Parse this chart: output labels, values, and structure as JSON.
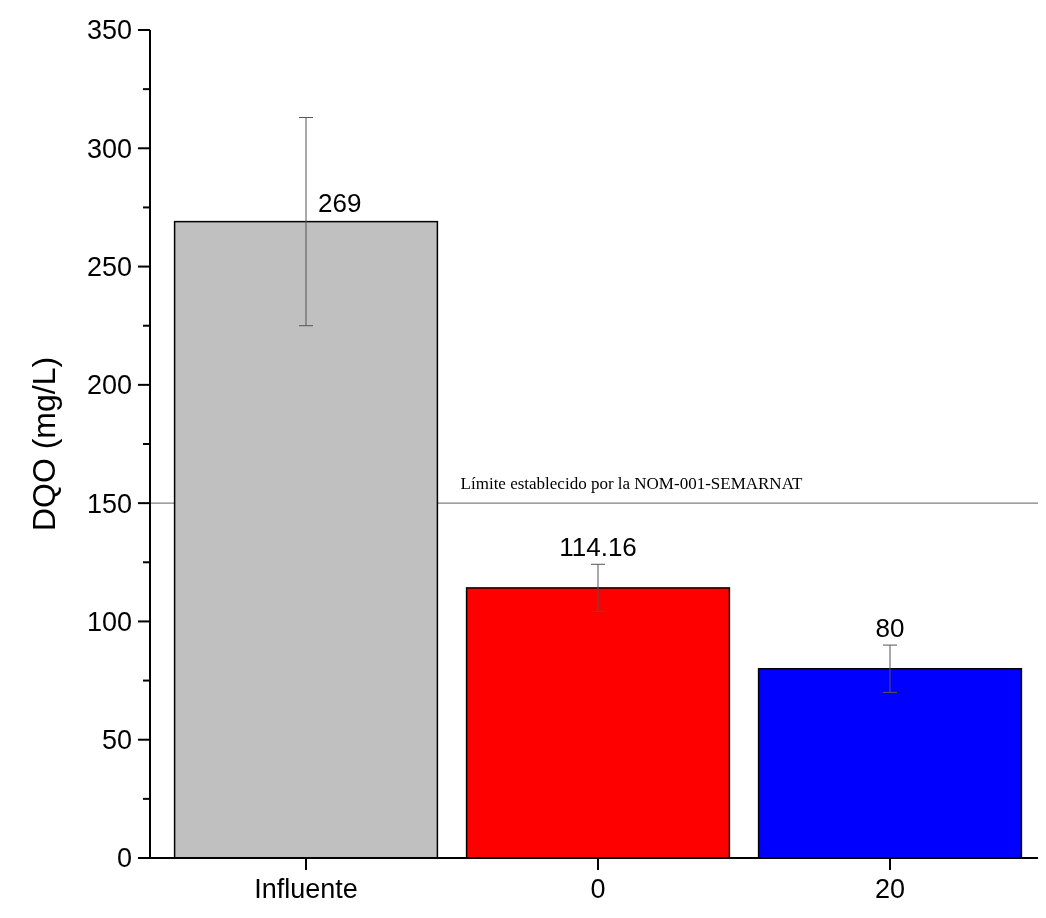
{
  "chart_data": {
    "type": "bar",
    "ylabel": "DQO (mg/L)",
    "categories": [
      "Influente",
      "0",
      "20"
    ],
    "values": [
      269,
      114.16,
      80
    ],
    "colors": [
      "#c0c0c0",
      "#ff0000",
      "#0000ff"
    ],
    "errors": [
      44,
      10,
      10
    ],
    "data_labels": true,
    "ylim": [
      0,
      350
    ],
    "yticks": [
      0,
      {
        "value": 25,
        "label": null
      },
      50,
      {
        "value": 75,
        "label": null
      },
      100,
      {
        "value": 125,
        "label": null
      },
      150,
      {
        "value": 175,
        "label": null
      },
      200,
      {
        "value": 225,
        "label": null
      },
      250,
      {
        "value": 275,
        "label": null
      },
      300,
      {
        "value": 325,
        "label": null
      },
      350
    ],
    "ref_lines": [
      {
        "axis": "y",
        "value": 150,
        "label": "Límite establecido por la NOM-001-SEMARNAT",
        "color": "#808080"
      }
    ],
    "grid": false
  }
}
